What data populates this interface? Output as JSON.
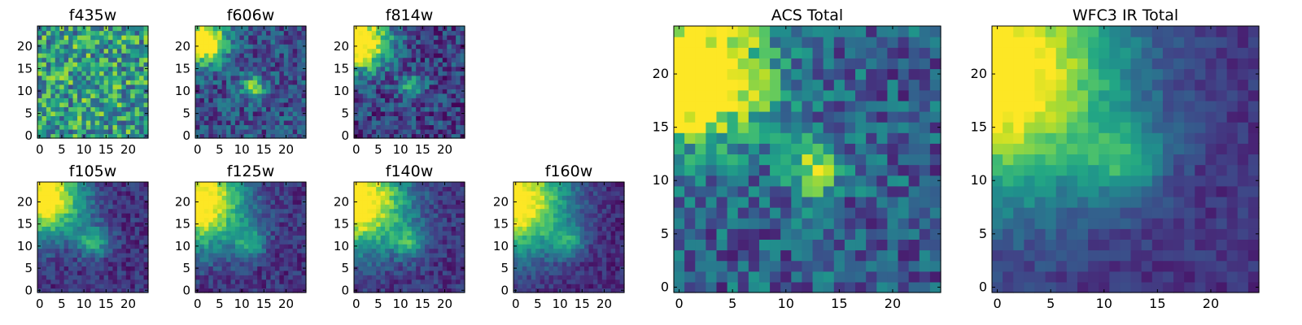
{
  "figure": {
    "title": ""
  },
  "chart_data": [
    {
      "type": "heatmap",
      "title": "f435w",
      "grid_size": 25,
      "xlim": [
        0,
        24
      ],
      "ylim": [
        0,
        24
      ],
      "xticks": [
        0,
        5,
        10,
        15,
        20
      ],
      "yticks": [
        0,
        5,
        10,
        15,
        20
      ],
      "colormap": "viridis",
      "hotspots": [],
      "noise": 0.33,
      "base": 0.56
    },
    {
      "type": "heatmap",
      "title": "f606w",
      "grid_size": 25,
      "xlim": [
        0,
        24
      ],
      "ylim": [
        0,
        24
      ],
      "xticks": [
        0,
        5,
        10,
        15,
        20
      ],
      "yticks": [
        0,
        5,
        10,
        15,
        20
      ],
      "colormap": "viridis",
      "hotspots": [
        [
          1.5,
          21,
          1.0,
          3.5
        ],
        [
          12.5,
          11,
          0.55,
          1.8
        ]
      ],
      "noise": 0.2,
      "base": 0.25
    },
    {
      "type": "heatmap",
      "title": "f814w",
      "grid_size": 25,
      "xlim": [
        0,
        24
      ],
      "ylim": [
        0,
        24
      ],
      "xticks": [
        0,
        5,
        10,
        15,
        20
      ],
      "yticks": [
        0,
        5,
        10,
        15,
        20
      ],
      "colormap": "viridis",
      "hotspots": [
        [
          1,
          21,
          1.0,
          4.5
        ],
        [
          12.5,
          11,
          0.5,
          1.8
        ]
      ],
      "noise": 0.2,
      "base": 0.2
    },
    {
      "type": "heatmap",
      "title": "f105w",
      "grid_size": 25,
      "xlim": [
        0,
        24
      ],
      "ylim": [
        0,
        24
      ],
      "xticks": [
        0,
        5,
        10,
        15,
        20
      ],
      "yticks": [
        0,
        5,
        10,
        15,
        20
      ],
      "colormap": "viridis",
      "hotspots": [
        [
          1,
          21,
          1.0,
          6
        ],
        [
          12,
          11,
          0.45,
          2.5
        ]
      ],
      "noise": 0.12,
      "base": 0.15
    },
    {
      "type": "heatmap",
      "title": "f125w",
      "grid_size": 25,
      "xlim": [
        0,
        24
      ],
      "ylim": [
        0,
        24
      ],
      "xticks": [
        0,
        5,
        10,
        15,
        20
      ],
      "yticks": [
        0,
        5,
        10,
        15,
        20
      ],
      "colormap": "viridis",
      "hotspots": [
        [
          0.5,
          20,
          1.0,
          7
        ],
        [
          12,
          11,
          0.35,
          2.5
        ]
      ],
      "noise": 0.12,
      "base": 0.15
    },
    {
      "type": "heatmap",
      "title": "f140w",
      "grid_size": 25,
      "xlim": [
        0,
        24
      ],
      "ylim": [
        0,
        24
      ],
      "xticks": [
        0,
        5,
        10,
        15,
        20
      ],
      "yticks": [
        0,
        5,
        10,
        15,
        20
      ],
      "colormap": "viridis",
      "hotspots": [
        [
          0.5,
          20,
          1.0,
          7.5
        ],
        [
          12,
          11,
          0.4,
          2.5
        ]
      ],
      "noise": 0.12,
      "base": 0.15
    },
    {
      "type": "heatmap",
      "title": "f160w",
      "grid_size": 25,
      "xlim": [
        0,
        24
      ],
      "ylim": [
        0,
        24
      ],
      "xticks": [
        0,
        5,
        10,
        15,
        20
      ],
      "yticks": [
        0,
        5,
        10,
        15,
        20
      ],
      "colormap": "viridis",
      "hotspots": [
        [
          0,
          20,
          1.0,
          8
        ],
        [
          12,
          11,
          0.35,
          2.5
        ]
      ],
      "noise": 0.1,
      "base": 0.12
    },
    {
      "type": "heatmap",
      "title": "ACS Total",
      "grid_size": 25,
      "xlim": [
        0,
        24
      ],
      "ylim": [
        0,
        24
      ],
      "xticks": [
        0,
        5,
        10,
        15,
        20
      ],
      "yticks": [
        0,
        5,
        10,
        15,
        20
      ],
      "colormap": "viridis",
      "hotspots": [
        [
          2,
          20,
          1.0,
          4.5
        ],
        [
          12.5,
          11,
          0.6,
          1.8
        ]
      ],
      "noise": 0.22,
      "base": 0.3
    },
    {
      "type": "heatmap",
      "title": "WFC3 IR Total",
      "grid_size": 25,
      "xlim": [
        0,
        24
      ],
      "ylim": [
        0,
        24
      ],
      "xticks": [
        0,
        5,
        10,
        15,
        20
      ],
      "yticks": [
        0,
        5,
        10,
        15,
        20
      ],
      "colormap": "viridis",
      "hotspots": [
        [
          0,
          20,
          1.0,
          8
        ],
        [
          12,
          12,
          0.35,
          2.5
        ]
      ],
      "noise": 0.08,
      "base": 0.15
    }
  ]
}
